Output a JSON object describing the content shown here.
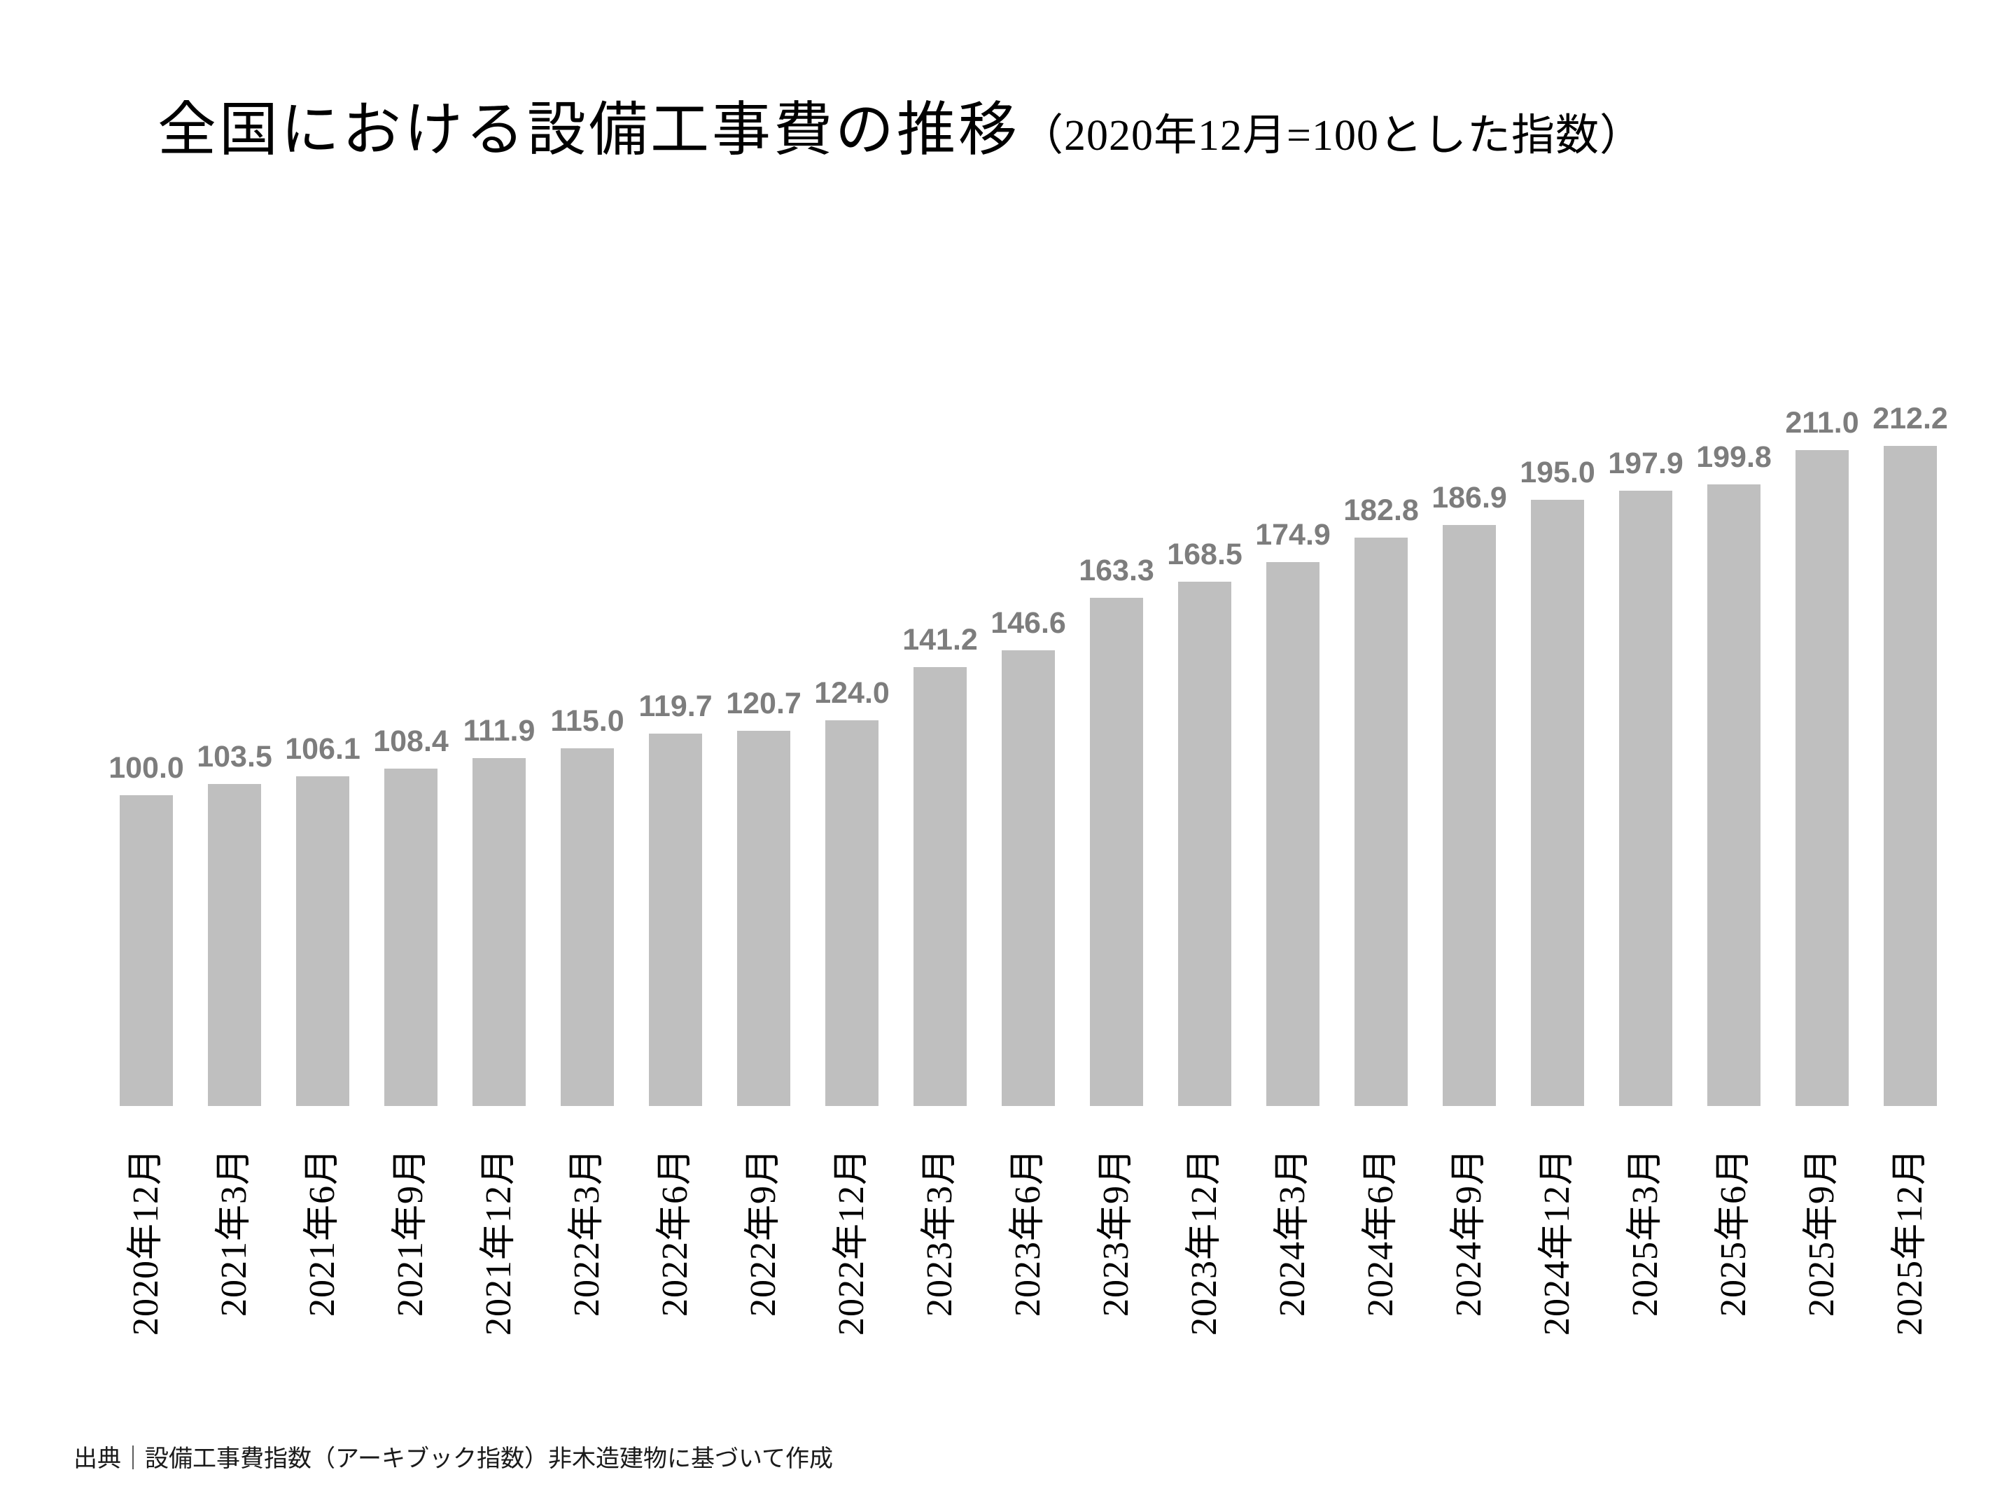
{
  "title": {
    "main": "全国における設備工事費の推移",
    "sub": "（2020年12月=100とした指数）"
  },
  "source": "出典｜設備工事費指数（アーキブック指数）非木造建物に基づいて作成",
  "chart_data": {
    "type": "bar",
    "title": "全国における設備工事費の推移（2020年12月=100とした指数）",
    "xlabel": "",
    "ylabel": "",
    "categories": [
      "2020年12月",
      "2021年3月",
      "2021年6月",
      "2021年9月",
      "2021年12月",
      "2022年3月",
      "2022年6月",
      "2022年9月",
      "2022年12月",
      "2023年3月",
      "2023年6月",
      "2023年9月",
      "2023年12月",
      "2024年3月",
      "2024年6月",
      "2024年9月",
      "2024年12月",
      "2025年3月",
      "2025年6月",
      "2025年9月",
      "2025年12月"
    ],
    "values": [
      100.0,
      103.5,
      106.1,
      108.4,
      111.9,
      115.0,
      119.7,
      120.7,
      124.0,
      141.2,
      146.6,
      163.3,
      168.5,
      174.9,
      182.8,
      186.9,
      195.0,
      197.9,
      199.8,
      211.0,
      212.2
    ],
    "value_label_decimals": 1,
    "bar_color": "#bfbfbf",
    "value_label_color": "#7d7d7d",
    "axis_label_color": "#000000",
    "ylim": [
      0,
      220
    ],
    "grid": false,
    "legend": false,
    "x_tick_rotation": -90
  }
}
